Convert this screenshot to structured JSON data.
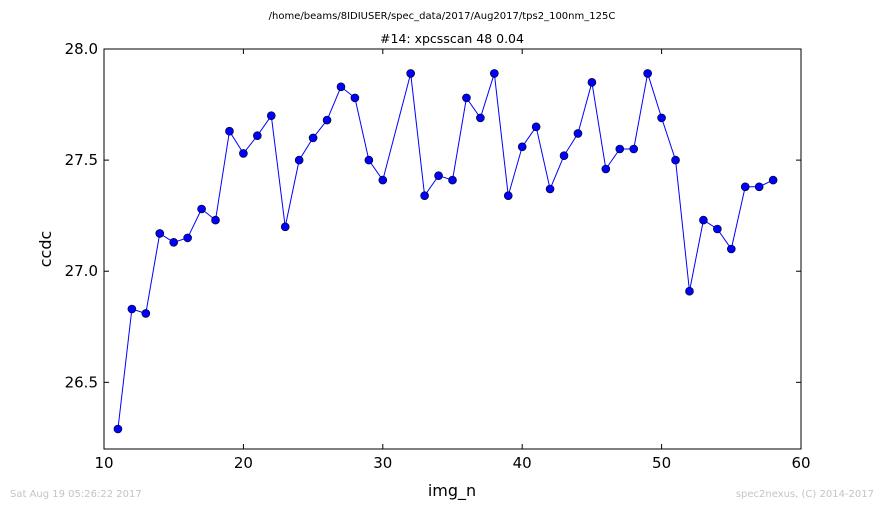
{
  "page": {
    "supertitle": "/home/beams/8IDIUSER/spec_data/2017/Aug2017/tps2_100nm_125C",
    "footer_left": "Sat Aug 19 05:26:22 2017",
    "footer_right": "spec2nexus, (C) 2014-2017"
  },
  "chart_data": {
    "type": "line",
    "title": "#14: xpcsscan 48 0.04",
    "xlabel": "img_n",
    "ylabel": "ccdc",
    "xlim": [
      10,
      60
    ],
    "ylim": [
      26.2,
      28.0
    ],
    "xticks": [
      10,
      20,
      30,
      40,
      50,
      60
    ],
    "yticks": [
      26.5,
      27.0,
      27.5,
      28.0
    ],
    "xtick_labels": [
      "10",
      "20",
      "30",
      "40",
      "50",
      "60"
    ],
    "ytick_labels": [
      "26.5",
      "27.0",
      "27.5",
      "28.0"
    ],
    "grid": false,
    "legend": "none",
    "colors": {
      "line": "#0000ff",
      "marker": "#0000ff"
    },
    "series": [
      {
        "x": [
          11,
          12,
          13,
          14,
          15,
          16,
          17,
          18,
          19,
          20,
          21,
          22,
          23,
          24,
          25,
          26,
          27,
          28,
          29,
          30,
          32,
          33,
          34,
          35,
          36,
          37,
          38,
          39,
          40,
          41,
          42,
          43,
          44,
          45,
          46,
          47,
          48,
          49,
          50,
          51,
          52,
          53,
          54,
          55,
          56,
          57,
          58
        ],
        "values": [
          26.29,
          26.83,
          26.81,
          27.17,
          27.13,
          27.15,
          27.28,
          27.23,
          27.63,
          27.53,
          27.61,
          27.7,
          27.2,
          27.5,
          27.6,
          27.68,
          27.83,
          27.78,
          27.5,
          27.41,
          27.89,
          27.34,
          27.43,
          27.41,
          27.78,
          27.69,
          27.89,
          27.34,
          27.56,
          27.65,
          27.37,
          27.52,
          27.62,
          27.85,
          27.46,
          27.55,
          27.55,
          27.89,
          27.69,
          27.5,
          26.91,
          27.23,
          27.19,
          27.1,
          27.38,
          27.38,
          27.41
        ]
      }
    ]
  }
}
